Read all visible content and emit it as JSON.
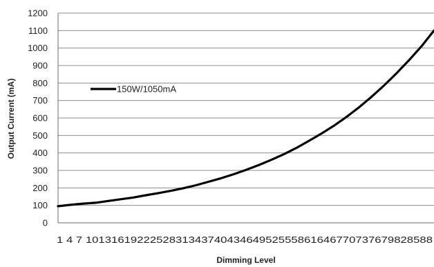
{
  "chart_data": {
    "type": "line",
    "xlabel": "Dimming Level",
    "ylabel": "Output Current (mA)",
    "ylim": [
      0,
      1200
    ],
    "yticks": [
      0,
      100,
      200,
      300,
      400,
      500,
      600,
      700,
      800,
      900,
      1000,
      1100,
      1200
    ],
    "xlim": [
      1,
      91
    ],
    "x_tick_text": "1  4  7  101316192225283134374043464952555861646770737679828588",
    "grid": "horizontal",
    "legend_position": "left-middle",
    "series": [
      {
        "name": "150W/1050mA",
        "color": "#000000",
        "x": [
          1,
          4,
          7,
          10,
          13,
          16,
          19,
          22,
          25,
          28,
          31,
          34,
          37,
          40,
          43,
          46,
          49,
          52,
          55,
          58,
          61,
          64,
          67,
          70,
          73,
          76,
          79,
          82,
          85,
          88,
          91
        ],
        "y": [
          95,
          103,
          110,
          115,
          125,
          135,
          145,
          158,
          170,
          183,
          198,
          215,
          235,
          255,
          278,
          303,
          330,
          360,
          392,
          428,
          468,
          510,
          555,
          605,
          660,
          720,
          785,
          855,
          930,
          1010,
          1100
        ]
      }
    ]
  }
}
